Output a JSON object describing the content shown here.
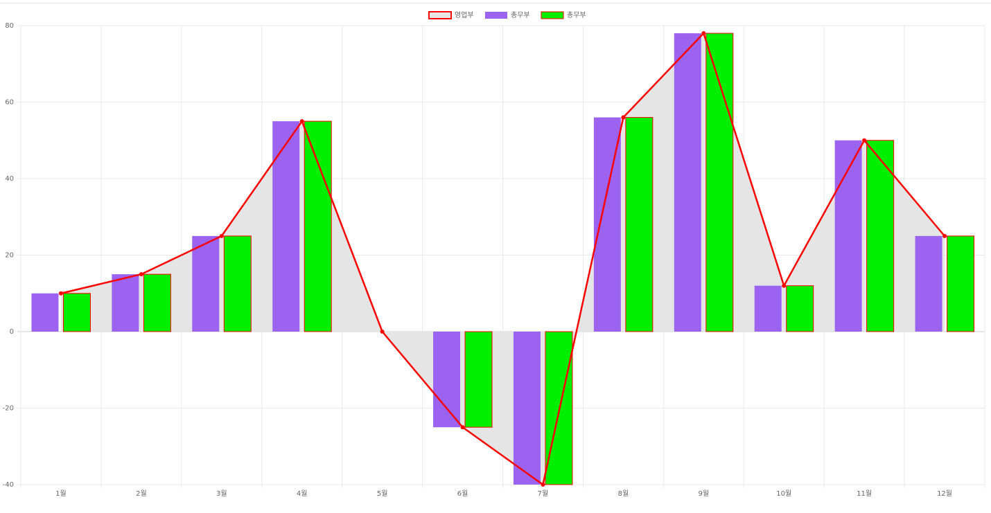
{
  "chart_data": {
    "type": "bar",
    "categories": [
      "1월",
      "2월",
      "3월",
      "4월",
      "5월",
      "6월",
      "7월",
      "8월",
      "9월",
      "10월",
      "11월",
      "12월"
    ],
    "series": [
      {
        "name": "영업부",
        "type": "line",
        "color": "#ff0000",
        "fill": "#e5e5e5",
        "values": [
          10,
          15,
          25,
          55,
          0,
          -25,
          -40,
          56,
          78,
          12,
          50,
          25
        ]
      },
      {
        "name": "총무부",
        "type": "bar",
        "color": "#9b63f0",
        "values": [
          10,
          15,
          25,
          55,
          0,
          -25,
          -40,
          56,
          78,
          12,
          50,
          25
        ]
      },
      {
        "name": "총무부",
        "type": "bar",
        "color": "#00ee00",
        "border_color": "#ff0000",
        "values": [
          10,
          15,
          25,
          55,
          0,
          -25,
          -40,
          56,
          78,
          12,
          50,
          25
        ]
      }
    ],
    "ylim": [
      -40,
      80
    ],
    "yticks": [
      -40,
      -20,
      0,
      20,
      40,
      60,
      80
    ],
    "grid": true,
    "legend": "top"
  }
}
